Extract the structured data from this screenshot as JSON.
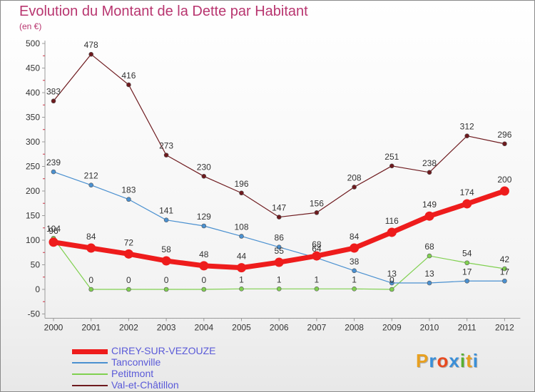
{
  "header": {
    "title": "Evolution du Montant de la Dette par Habitant",
    "subtitle": "(en €)"
  },
  "logo": {
    "text": "Proxiti",
    "colors": [
      "#e8a020",
      "#3a8fd8",
      "#e84a20",
      "#3a8fd8",
      "#58b030",
      "#e8a020",
      "#3a8fd8"
    ]
  },
  "chart_data": {
    "type": "line",
    "x": [
      "2000",
      "2001",
      "2002",
      "2003",
      "2004",
      "2005",
      "2006",
      "2007",
      "2008",
      "2009",
      "2010",
      "2011",
      "2012"
    ],
    "ylim": [
      -50,
      500
    ],
    "yticks": [
      -50,
      0,
      50,
      100,
      150,
      200,
      250,
      300,
      350,
      400,
      450,
      500
    ],
    "grid": false,
    "legend_position": "bottom-left",
    "series": [
      {
        "name": "CIREY-SUR-VEZOUZE",
        "color": "#ee1c1c",
        "width": 7,
        "dot": 6.5,
        "values": [
          96,
          84,
          72,
          58,
          48,
          44,
          55,
          68,
          84,
          116,
          149,
          174,
          200
        ],
        "labels": [
          "96",
          "84",
          "72",
          "58",
          "48",
          "44",
          "55",
          "68",
          "84",
          "116",
          "149",
          "174",
          "200"
        ]
      },
      {
        "name": "Tanconville",
        "color": "#4a90d0",
        "width": 1.2,
        "dot": 3,
        "values": [
          239,
          212,
          183,
          141,
          129,
          108,
          86,
          64,
          38,
          13,
          13,
          17,
          17
        ],
        "labels": [
          "239",
          "212",
          "183",
          "141",
          "129",
          "108",
          "86",
          "64",
          "38",
          "13",
          "13",
          "17",
          "17"
        ]
      },
      {
        "name": "Petitmont",
        "color": "#80d050",
        "width": 1.2,
        "dot": 3,
        "values": [
          104,
          0,
          0,
          0,
          0,
          1,
          1,
          1,
          1,
          0,
          68,
          54,
          42
        ],
        "labels": [
          "104",
          "0",
          "0",
          "0",
          "0",
          "1",
          "1",
          "1",
          "1",
          "0",
          "68",
          "54",
          "42"
        ]
      },
      {
        "name": "Val-et-Châtillon",
        "color": "#6e1a1e",
        "width": 1.2,
        "dot": 3,
        "values": [
          383,
          478,
          416,
          273,
          230,
          196,
          147,
          156,
          208,
          251,
          238,
          312,
          296
        ],
        "labels": [
          "383",
          "478",
          "416",
          "273",
          "230",
          "196",
          "147",
          "156",
          "208",
          "251",
          "238",
          "312",
          "296"
        ]
      }
    ]
  }
}
